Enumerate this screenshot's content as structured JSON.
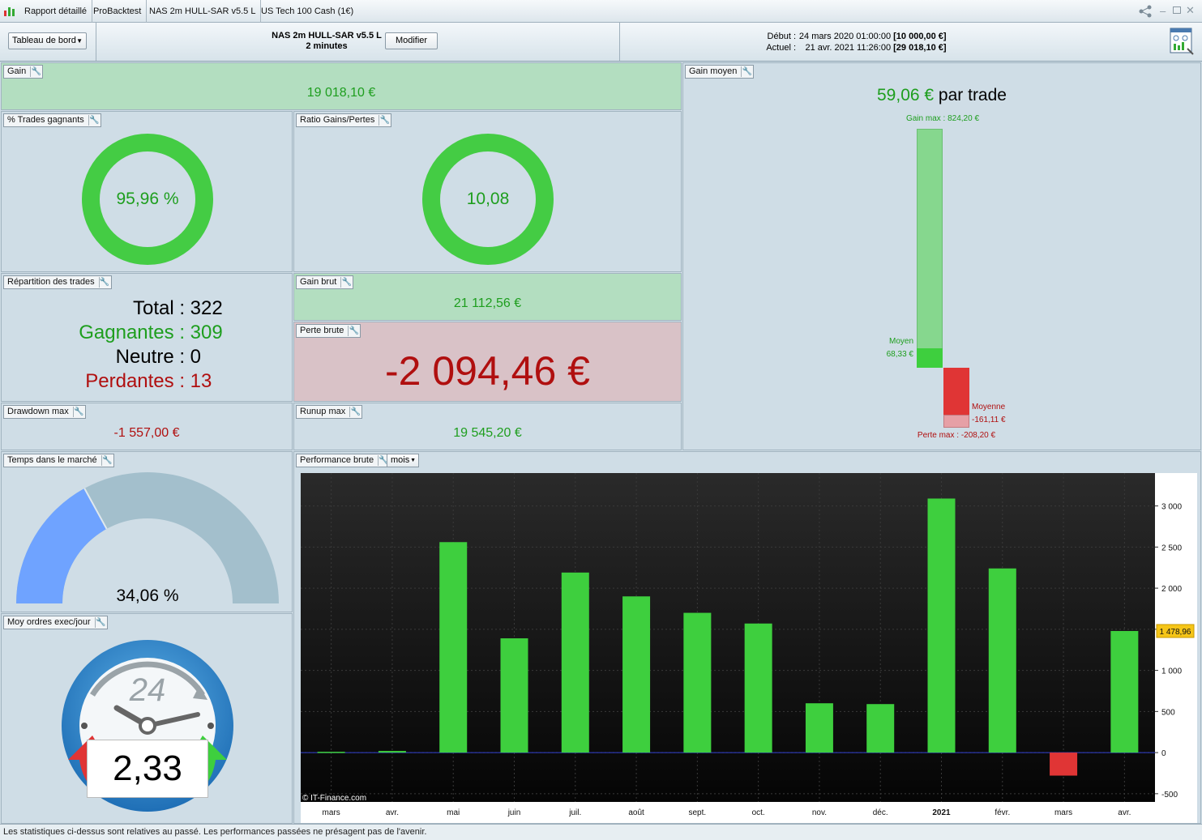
{
  "titlebar": {
    "tabs": [
      "Rapport détaillé",
      "ProBacktest",
      "NAS 2m HULL-SAR v5.5 L",
      "US Tech 100 Cash (1€)"
    ],
    "controls": {
      "share": "share-icon",
      "minimize": "minimize-icon",
      "maximize": "maximize-icon",
      "close": "close-icon"
    }
  },
  "toolbar": {
    "dashboard_select": "Tableau de bord",
    "system_name": "NAS 2m HULL-SAR v5.5 L",
    "timeframe": "2 minutes",
    "modify_button": "Modifier",
    "start_label": "Début :",
    "start_date": "24 mars 2020 01:00:00",
    "start_value": "[10 000,00 €]",
    "current_label": "Actuel :",
    "current_date": "21 avr. 2021 11:26:00",
    "current_value": "[29 018,10 €]"
  },
  "gain": {
    "title": "Gain",
    "value": "19 018,10 €"
  },
  "win_rate": {
    "title": "% Trades gagnants",
    "value": "95,96 %",
    "fraction": 0.9596
  },
  "ratio": {
    "title": "Ratio Gains/Pertes",
    "value": "10,08",
    "fraction": 0.9098
  },
  "distribution": {
    "title": "Répartition des trades",
    "total_label": "Total :",
    "total": "322",
    "win_label": "Gagnantes :",
    "win": "309",
    "neutral_label": "Neutre :",
    "neutral": "0",
    "loss_label": "Perdantes :",
    "loss": "13"
  },
  "gross_gain": {
    "title": "Gain brut",
    "value": "21 112,56 €"
  },
  "gross_loss": {
    "title": "Perte brute",
    "value": "-2 094,46 €"
  },
  "drawdown": {
    "title": "Drawdown max",
    "value": "-1 557,00 €"
  },
  "runup": {
    "title": "Runup max",
    "value": "19 545,20 €"
  },
  "avg_gain": {
    "title": "Gain moyen",
    "value": "59,06 €",
    "suffix": "par trade",
    "max_gain_label": "Gain max : 824,20 €",
    "avg_win_label": "Moyen",
    "avg_win_value": "68,33 €",
    "avg_loss_label": "Moyenne",
    "avg_loss_value": "-161,11 €",
    "max_loss_label": "Perte max : -208,20 €"
  },
  "time_in_market": {
    "title": "Temps dans le marché",
    "value": "34,06 %",
    "fraction": 0.3406
  },
  "orders_per_day": {
    "title": "Moy ordres exec/jour",
    "value": "2,33",
    "clock_label": "24"
  },
  "performance": {
    "title": "Performance brute",
    "period_select": "mois",
    "watermark": "© IT-Finance.com",
    "current_marker": "1 478,96"
  },
  "chart_data": {
    "type": "bar",
    "categories": [
      "mars",
      "avr.",
      "mai",
      "juin",
      "juil.",
      "août",
      "sept.",
      "oct.",
      "nov.",
      "déc.",
      "2021",
      "févr.",
      "mars",
      "avr."
    ],
    "values": [
      10,
      20,
      2560,
      1390,
      2190,
      1900,
      1700,
      1570,
      600,
      590,
      3090,
      2240,
      -280,
      1478.96
    ],
    "yticks": [
      "3 000",
      "2 500",
      "2 000",
      "1 500",
      "1 000",
      "500",
      "0",
      "-500"
    ],
    "ytick_values": [
      3000,
      2500,
      2000,
      1500,
      1000,
      500,
      0,
      -500
    ],
    "ylim": [
      -600,
      3400
    ],
    "grid": true,
    "colors": {
      "positive": "#3ecf3e",
      "negative": "#e03535",
      "zero_line": "#3340d0",
      "marker": "#f5c518"
    }
  },
  "footer": {
    "disclaimer": "Les statistiques ci-dessus sont relatives au passé. Les performances passées ne présagent pas de l'avenir."
  }
}
